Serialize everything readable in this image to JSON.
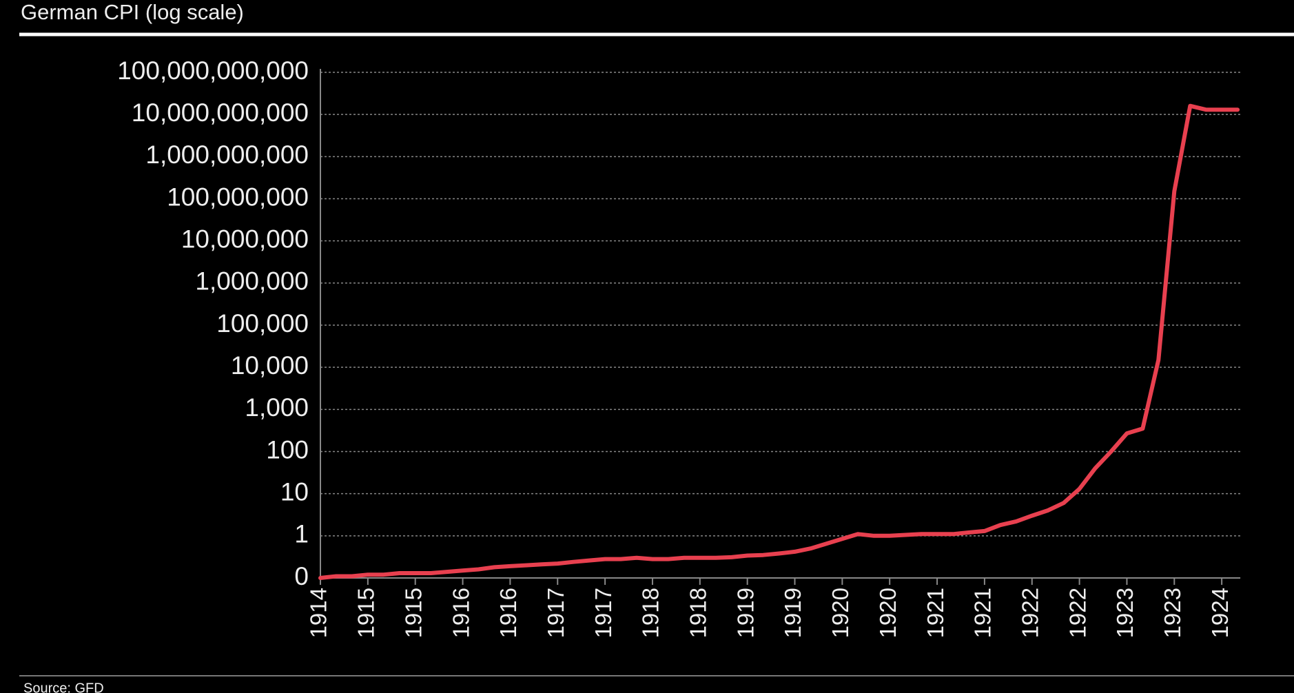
{
  "chart_data": {
    "type": "line",
    "title": "German CPI (log scale)",
    "source": "Source: GFD",
    "categories": [
      "1914",
      null,
      null,
      "1915",
      null,
      null,
      "1915",
      null,
      null,
      "1916",
      null,
      null,
      "1916",
      null,
      null,
      "1917",
      null,
      null,
      "1917",
      null,
      null,
      "1918",
      null,
      null,
      "1918",
      null,
      null,
      "1919",
      null,
      null,
      "1919",
      null,
      null,
      "1920",
      null,
      null,
      "1920",
      null,
      null,
      "1921",
      null,
      null,
      "1921",
      null,
      null,
      "1922",
      null,
      null,
      "1922",
      null,
      null,
      "1923",
      null,
      null,
      "1923",
      null,
      null,
      "1924",
      null
    ],
    "values": [
      0.1,
      0.11,
      0.11,
      0.12,
      0.12,
      0.13,
      0.13,
      0.13,
      0.14,
      0.15,
      0.16,
      0.18,
      0.19,
      0.2,
      0.21,
      0.22,
      0.24,
      0.26,
      0.28,
      0.28,
      0.3,
      0.28,
      0.28,
      0.3,
      0.3,
      0.3,
      0.31,
      0.34,
      0.35,
      0.38,
      0.42,
      0.5,
      0.65,
      0.85,
      1.1,
      1.0,
      1.0,
      1.05,
      1.1,
      1.1,
      1.1,
      1.2,
      1.3,
      1.8,
      2.2,
      3.0,
      4,
      6,
      13,
      40,
      100,
      270,
      350,
      15000,
      150000000,
      16000000000,
      13000000000,
      13000000000,
      13000000000
    ],
    "color": "#e8404f",
    "log_scale": true,
    "ylim": [
      0.1,
      100000000000
    ],
    "yticks": [
      {
        "value": 0.1,
        "label": "0"
      },
      1,
      10,
      100,
      {
        "value": 1000,
        "label": "1,000"
      },
      {
        "value": 10000,
        "label": "10,000"
      },
      {
        "value": 100000,
        "label": "100,000"
      },
      {
        "value": 1000000,
        "label": "1,000,000"
      },
      {
        "value": 10000000,
        "label": "10,000,000"
      },
      {
        "value": 100000000,
        "label": "100,000,000"
      },
      {
        "value": 1000000000,
        "label": "1,000,000,000"
      },
      {
        "value": 10000000000,
        "label": "10,000,000,000"
      },
      {
        "value": 100000000000,
        "label": "100,000,000,000"
      }
    ],
    "grid": true
  }
}
